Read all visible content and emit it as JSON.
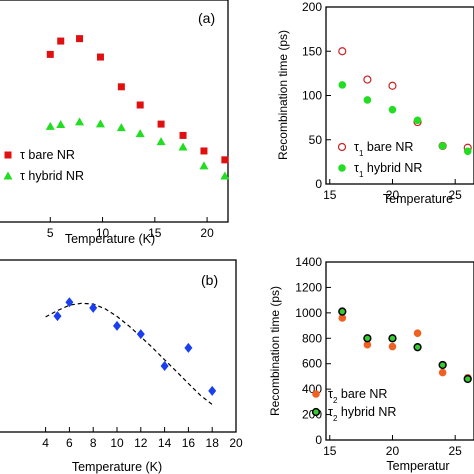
{
  "chart_data": [
    {
      "id": "tl",
      "type": "scatter",
      "panel_label": "(a)",
      "xlabel": "Temperature (K)",
      "ylabel": "",
      "xlim": [
        0,
        22
      ],
      "ylim": [
        0,
        1
      ],
      "xticks": [
        5,
        10,
        15,
        20
      ],
      "legend_position": "bottom-left",
      "series": [
        {
          "name": "τ bare NR",
          "marker": "square",
          "color": "#e01010",
          "x": [
            5,
            6,
            7.8,
            9.8,
            11.8,
            13.6,
            15.6,
            17.7,
            19.7,
            21.7
          ],
          "y": [
            0.755,
            0.815,
            0.826,
            0.743,
            0.609,
            0.527,
            0.441,
            0.39,
            0.32,
            0.28
          ]
        },
        {
          "name": "τ hybrid NR",
          "marker": "triangle",
          "color": "#22dd22",
          "x": [
            5,
            6,
            7.8,
            9.8,
            11.8,
            13.6,
            15.6,
            17.7,
            19.7,
            21.7
          ],
          "y": [
            0.431,
            0.439,
            0.451,
            0.442,
            0.425,
            0.398,
            0.362,
            0.338,
            0.253,
            0.207
          ]
        }
      ]
    },
    {
      "id": "tr",
      "type": "scatter",
      "panel_label": "",
      "xlabel": "Temperature",
      "ylabel": "Recombination time (ps)",
      "xlim": [
        14.7,
        26.5
      ],
      "ylim": [
        0,
        200
      ],
      "xticks": [
        15,
        20,
        25
      ],
      "yticks": [
        0,
        50,
        100,
        150,
        200
      ],
      "legend_position": "bottom-left",
      "series": [
        {
          "name": "τ1 bare NR",
          "sub": "1",
          "marker": "open-circle",
          "color": "#cc2222",
          "x": [
            16,
            18,
            20,
            22,
            24,
            26
          ],
          "y": [
            150,
            118,
            111,
            70,
            43,
            41
          ]
        },
        {
          "name": "τ1 hybrid NR",
          "sub": "1",
          "marker": "circle",
          "color": "#22dd22",
          "x": [
            16,
            18,
            20,
            22,
            24,
            26
          ],
          "y": [
            112,
            95,
            84,
            72,
            43,
            37
          ]
        }
      ]
    },
    {
      "id": "bl",
      "type": "scatter",
      "panel_label": "(b)",
      "xlabel": "Temperature (K)",
      "ylabel": "",
      "xlim": [
        0,
        20
      ],
      "ylim": [
        0,
        1
      ],
      "xticks": [
        4,
        6,
        8,
        10,
        12,
        14,
        16,
        18,
        20
      ],
      "series": [
        {
          "name": "",
          "marker": "diamond",
          "color": "#1a3ff0",
          "x": [
            5,
            6,
            8,
            10,
            12,
            14,
            16,
            18
          ],
          "y": [
            0.674,
            0.754,
            0.722,
            0.617,
            0.569,
            0.384,
            0.489,
            0.239
          ]
        }
      ],
      "fit_curve": {
        "style": "dashed",
        "x": [
          4,
          5,
          6,
          7,
          8,
          9,
          10,
          11,
          12,
          13,
          14,
          15,
          16,
          17,
          18
        ],
        "y": [
          0.669,
          0.706,
          0.737,
          0.748,
          0.744,
          0.716,
          0.672,
          0.617,
          0.554,
          0.489,
          0.42,
          0.352,
          0.282,
          0.214,
          0.16
        ]
      }
    },
    {
      "id": "br",
      "type": "scatter",
      "panel_label": "",
      "xlabel": "Temperatur",
      "ylabel": "Recombination time (ps)",
      "xlim": [
        14.7,
        26.5
      ],
      "ylim": [
        0,
        1400
      ],
      "xticks": [
        15,
        20,
        25
      ],
      "yticks": [
        0,
        200,
        400,
        600,
        800,
        1000,
        1200,
        1400
      ],
      "legend_position": "bottom-left",
      "series": [
        {
          "name": "τ2 bare NR",
          "sub": "2",
          "marker": "circle",
          "color": "#f06020",
          "x": [
            16,
            18,
            20,
            22,
            24,
            26
          ],
          "y": [
            960,
            750,
            735,
            840,
            530,
            490
          ]
        },
        {
          "name": "τ2 hybrid NR",
          "sub": "2",
          "marker": "ringed-circle",
          "color": "#33cc33",
          "x": [
            16,
            18,
            20,
            22,
            24,
            26
          ],
          "y": [
            1010,
            800,
            800,
            730,
            590,
            480
          ]
        }
      ]
    }
  ]
}
